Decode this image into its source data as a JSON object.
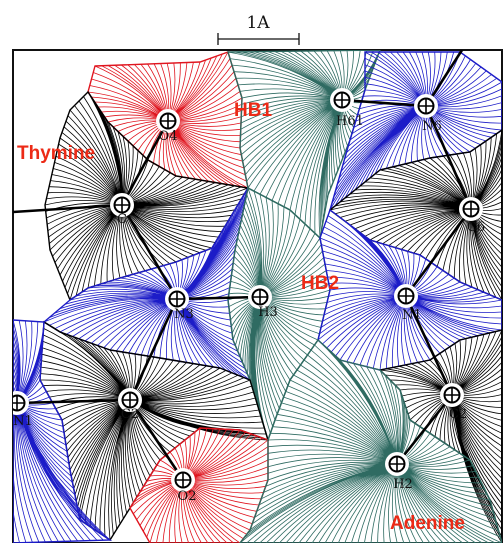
{
  "scale_bar": {
    "label": "1A"
  },
  "titles": {
    "thymine": "Thymine",
    "adenine": "Adenine",
    "hb1": "HB1",
    "hb2": "HB2"
  },
  "colors": {
    "carbon": "#000000",
    "nitrogen": "#1c1cc8",
    "oxygen": "#e0141e",
    "hydrogen": "#2f6b62",
    "label_red": "#ec2a16",
    "bond": "#000000"
  },
  "atoms": [
    {
      "id": "O4",
      "label": "O4",
      "element": "oxygen"
    },
    {
      "id": "C4",
      "label": "C",
      "element": "carbon"
    },
    {
      "id": "N3",
      "label": "N3",
      "element": "nitrogen"
    },
    {
      "id": "H3",
      "label": "H3",
      "element": "hydrogen"
    },
    {
      "id": "C2",
      "label": "C2",
      "element": "carbon"
    },
    {
      "id": "O2",
      "label": "O2",
      "element": "oxygen"
    },
    {
      "id": "N1",
      "label": "N1",
      "element": "nitrogen"
    },
    {
      "id": "H61",
      "label": "H61",
      "element": "hydrogen"
    },
    {
      "id": "N6",
      "label": "N6",
      "element": "nitrogen"
    },
    {
      "id": "C6",
      "label": "C6",
      "element": "carbon"
    },
    {
      "id": "N1A",
      "label": "N1",
      "element": "nitrogen"
    },
    {
      "id": "C2A",
      "label": "C2",
      "element": "carbon"
    },
    {
      "id": "H2",
      "label": "H2",
      "element": "hydrogen"
    }
  ],
  "bonds": [
    [
      "O4",
      "C4"
    ],
    [
      "C4",
      "N3"
    ],
    [
      "N3",
      "H3"
    ],
    [
      "N3",
      "C2"
    ],
    [
      "C2",
      "O2"
    ],
    [
      "C2",
      "N1"
    ],
    [
      "H61",
      "N6"
    ],
    [
      "N6",
      "C6"
    ],
    [
      "C6",
      "N1A"
    ],
    [
      "N1A",
      "C2A"
    ],
    [
      "C2A",
      "H2"
    ]
  ]
}
